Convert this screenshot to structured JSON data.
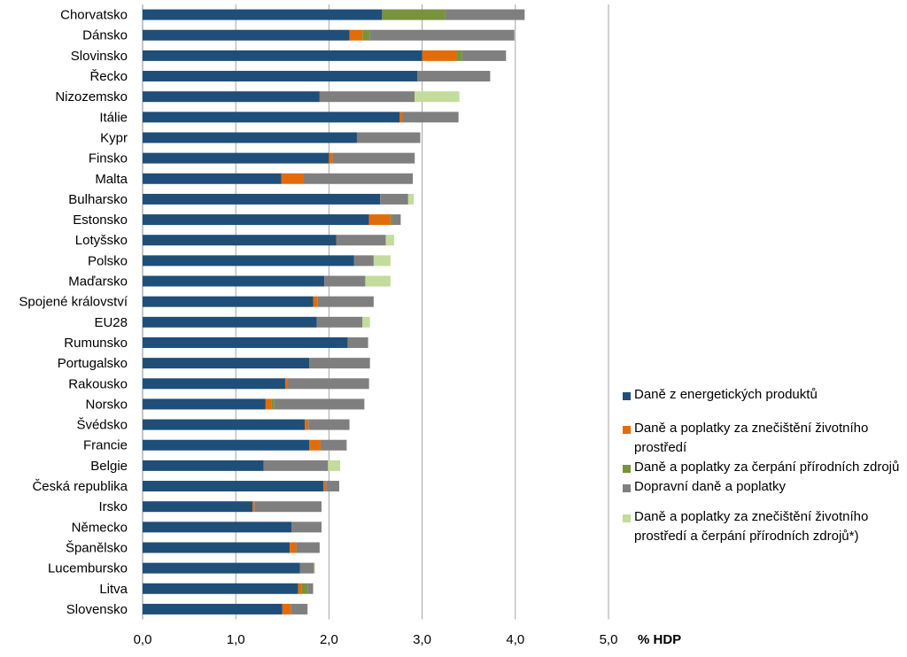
{
  "chart_data": {
    "type": "bar",
    "orientation": "horizontal",
    "stacked": true,
    "xlabel": "% HDP",
    "xlim": [
      0,
      5
    ],
    "xticks": [
      "0,0",
      "1,0",
      "2,0",
      "3,0",
      "4,0",
      "5,0"
    ],
    "grid": "vertical",
    "legend_position": "right",
    "categories": [
      "Chorvatsko",
      "Dánsko",
      "Slovinsko",
      "Řecko",
      "Nizozemsko",
      "Itálie",
      "Kypr",
      "Finsko",
      "Malta",
      "Bulharsko",
      "Estonsko",
      "Lotyšsko",
      "Polsko",
      "Maďarsko",
      "Spojené království",
      "EU28",
      "Rumunsko",
      "Portugalsko",
      "Rakousko",
      "Norsko",
      "Švédsko",
      "Francie",
      "Belgie",
      "Česká republika",
      "Irsko",
      "Německo",
      "Španělsko",
      "Lucembursko",
      "Litva",
      "Slovensko"
    ],
    "series": [
      {
        "name": "Daně z energetických produktů",
        "color": "#1f4e79",
        "values": [
          2.57,
          2.22,
          3.0,
          2.95,
          1.9,
          2.76,
          2.3,
          2.0,
          1.49,
          2.55,
          2.43,
          2.08,
          2.27,
          1.95,
          1.83,
          1.87,
          2.2,
          1.79,
          1.53,
          1.32,
          1.74,
          1.79,
          1.3,
          1.94,
          1.18,
          1.6,
          1.58,
          1.69,
          1.67,
          1.5
        ]
      },
      {
        "name": "Daně a poplatky za znečištění životního prostředí",
        "color": "#e36c0a",
        "values": [
          0,
          0.14,
          0.37,
          0,
          0,
          0.03,
          0,
          0.04,
          0.24,
          0,
          0.23,
          0,
          0,
          0,
          0.05,
          0,
          0,
          0,
          0.02,
          0.06,
          0.04,
          0.12,
          0,
          0.03,
          0.02,
          0,
          0.07,
          0,
          0.04,
          0.09
        ]
      },
      {
        "name": "Daně a poplatky za čerpání přírodních zdrojů",
        "color": "#77933c",
        "values": [
          0.68,
          0.08,
          0.06,
          0,
          0,
          0,
          0,
          0,
          0,
          0,
          0.02,
          0,
          0,
          0,
          0,
          0,
          0,
          0,
          0,
          0.03,
          0,
          0,
          0,
          0,
          0,
          0,
          0,
          0,
          0.06,
          0
        ]
      },
      {
        "name": "Dopravní daně a poplatky",
        "color": "#7f7f7f",
        "values": [
          0.85,
          1.55,
          0.47,
          0.78,
          1.02,
          0.6,
          0.68,
          0.88,
          1.17,
          0.3,
          0.09,
          0.53,
          0.21,
          0.44,
          0.6,
          0.49,
          0.22,
          0.65,
          0.88,
          0.97,
          0.44,
          0.28,
          0.69,
          0.14,
          0.72,
          0.32,
          0.25,
          0.15,
          0.06,
          0.18
        ]
      },
      {
        "name": "Daně a poplatky za znečištění životního prostředí a čerpání přírodních zdrojů*)",
        "color": "#c3dc9b",
        "values": [
          0,
          0,
          0,
          0,
          0.48,
          0,
          0,
          0,
          0,
          0.06,
          0,
          0.09,
          0.18,
          0.27,
          0,
          0.08,
          0,
          0,
          0,
          0,
          0,
          0,
          0.13,
          0,
          0,
          0,
          0,
          0.01,
          0,
          0
        ]
      }
    ]
  }
}
